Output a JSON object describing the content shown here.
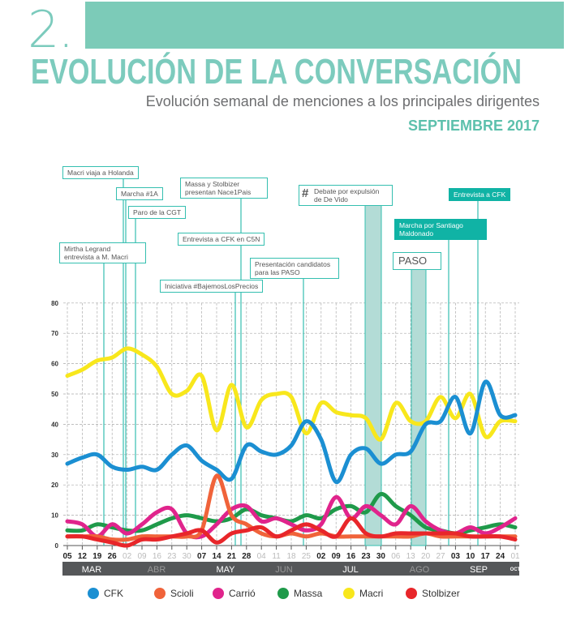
{
  "header": {
    "number": "2.",
    "title": "EVOLUCIÓN DE LA CONVERSACIÓN",
    "subtitle": "Evolución semanal de menciones a los principales dirigentes",
    "period": "SEPTIEMBRE 2017"
  },
  "annotations": [
    "Macri viaja a Holanda",
    "Marcha #1A",
    "Paro de la CGT",
    "Mirtha Legrand entrevista a M. Macri",
    "Massa y Stolbizer presentan Nace1Pais",
    "Entrevista a CFK en C5N",
    "Iniciativa #BajemosLosPrecios",
    "Presentación candidatos para las PASO",
    "Debate por expulsión de De Vido",
    "Entrevista a CFK",
    "Marcha por Santiago Maldonado",
    "PASO"
  ],
  "chart_data": {
    "type": "line",
    "title": "Evolución semanal de menciones a los principales dirigentes",
    "ylim": [
      0,
      80
    ],
    "yticks": [
      0,
      10,
      20,
      30,
      40,
      50,
      60,
      70,
      80
    ],
    "x": [
      "05",
      "12",
      "19",
      "26",
      "02",
      "09",
      "16",
      "23",
      "30",
      "07",
      "14",
      "21",
      "28",
      "04",
      "11",
      "18",
      "25",
      "02",
      "09",
      "16",
      "23",
      "30",
      "06",
      "13",
      "20",
      "27",
      "03",
      "10",
      "17",
      "24",
      "01"
    ],
    "months": [
      "MAR",
      "ABR",
      "MAY",
      "JUN",
      "JUL",
      "AGO",
      "SEP",
      "OCT"
    ],
    "grid": true,
    "legend": "bottom",
    "series": [
      {
        "name": "Macri",
        "color": "#f8e71c",
        "values": [
          56,
          58,
          61,
          62,
          65,
          63,
          59,
          50,
          51,
          56,
          38,
          53,
          39,
          48,
          50,
          49,
          37,
          47,
          44,
          43,
          42,
          35,
          47,
          41,
          41,
          49,
          42,
          50,
          36,
          41,
          41
        ]
      },
      {
        "name": "CFK",
        "color": "#1b8fd2",
        "values": [
          27,
          29,
          30,
          26,
          25,
          26,
          25,
          30,
          33,
          28,
          25,
          22,
          33,
          31,
          30,
          33,
          41,
          35,
          21,
          30,
          32,
          27,
          30,
          31,
          40,
          41,
          49,
          37,
          54,
          43,
          43
        ]
      },
      {
        "name": "Massa",
        "color": "#1f9a4a",
        "values": [
          5,
          5,
          7,
          6,
          5,
          5,
          7,
          9,
          10,
          9,
          8,
          9,
          12,
          10,
          9,
          8,
          10,
          9,
          12,
          13,
          11,
          17,
          13,
          10,
          6,
          5,
          4,
          5,
          6,
          7,
          6
        ]
      },
      {
        "name": "Carrió",
        "color": "#e0248c",
        "values": [
          8,
          7,
          3,
          7,
          4,
          7,
          11,
          12,
          4,
          3,
          7,
          12,
          13,
          8,
          9,
          7,
          5,
          7,
          16,
          9,
          13,
          10,
          7,
          13,
          8,
          5,
          4,
          6,
          4,
          6,
          9
        ]
      },
      {
        "name": "Scioli",
        "color": "#f0633a",
        "values": [
          3,
          3,
          3,
          2,
          2,
          3,
          3,
          3,
          3,
          5,
          23,
          10,
          7,
          4,
          3,
          4,
          3,
          4,
          3,
          3,
          3,
          3,
          3,
          3,
          4,
          3,
          3,
          3,
          3,
          3,
          3
        ]
      },
      {
        "name": "Stolbizer",
        "color": "#e8262a",
        "values": [
          3,
          3,
          2,
          1,
          0,
          2,
          2,
          3,
          4,
          5,
          1,
          4,
          5,
          6,
          3,
          5,
          7,
          5,
          3,
          9,
          4,
          3,
          4,
          4,
          4,
          4,
          4,
          3,
          3,
          3,
          2
        ]
      }
    ],
    "legend_order": [
      "CFK",
      "Scioli",
      "Carrió",
      "Massa",
      "Macri",
      "Stolbizer"
    ]
  }
}
